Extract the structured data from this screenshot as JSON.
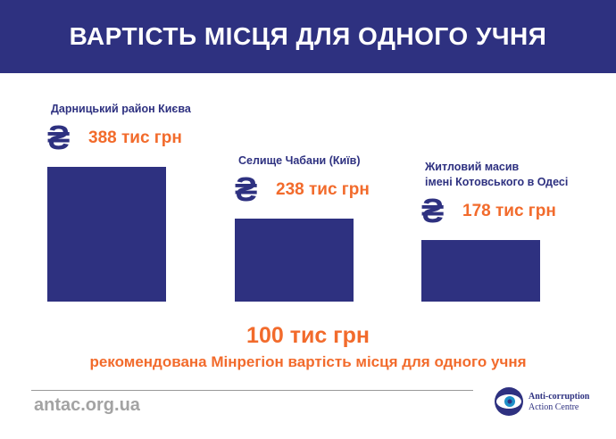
{
  "chart_data": {
    "type": "bar",
    "title": "ВАРТІСТЬ МІСЦЯ ДЛЯ ОДНОГО УЧНЯ",
    "categories": [
      "Дарницький район Києва",
      "Селище Чабани (Київ)",
      "Житловий масив\nімені Котовського в Одесі"
    ],
    "values": [
      388,
      238,
      178
    ],
    "value_labels": [
      "388 тис грн",
      "238 тис грн",
      "178 тис грн"
    ],
    "color": "#2e3180",
    "annotation": "100 тис грн",
    "annotation_caption": "рекомендована Мінрегіон вартість місця для одного учня"
  },
  "footer": {
    "site": "antac.org.ua",
    "logo": [
      "Anti-corruption",
      "Action Centre"
    ]
  }
}
